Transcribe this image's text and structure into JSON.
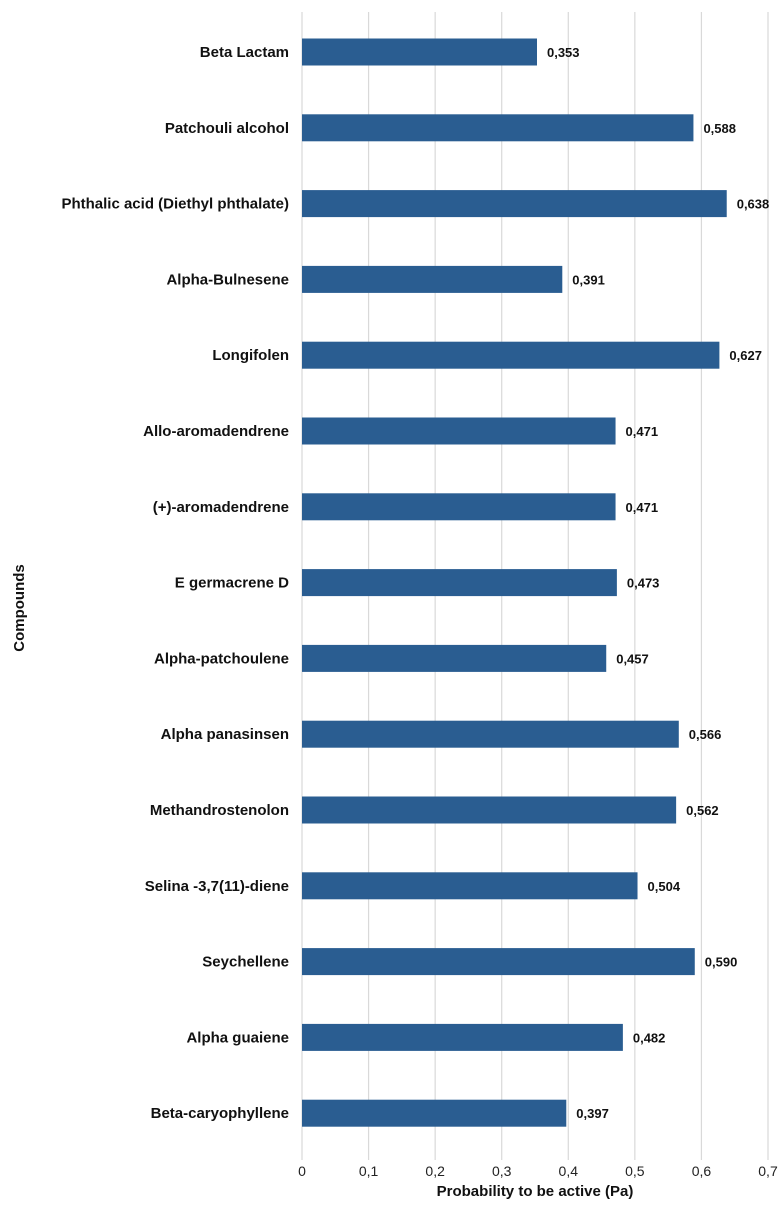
{
  "chart_data": {
    "type": "bar",
    "orientation": "horizontal",
    "categories": [
      "Beta Lactam",
      "Patchouli alcohol",
      "Phthalic acid (Diethyl phthalate)",
      "Alpha-Bulnesene",
      "Longifolen",
      "Allo-aromadendrene",
      "(+)-aromadendrene",
      "E germacrene D",
      "Alpha-patchoulene",
      "Alpha panasinsen",
      "Methandrostenolon",
      "Selina -3,7(11)-diene",
      "Seychellene",
      "Alpha guaiene",
      "Beta-caryophyllene"
    ],
    "values": [
      0.353,
      0.588,
      0.638,
      0.391,
      0.627,
      0.471,
      0.471,
      0.473,
      0.457,
      0.566,
      0.562,
      0.504,
      0.59,
      0.482,
      0.397
    ],
    "value_labels": [
      "0,353",
      "0,588",
      "0,638",
      "0,391",
      "0,627",
      "0,471",
      "0,471",
      "0,473",
      "0,457",
      "0,566",
      "0,562",
      "0,504",
      "0,590",
      "0,482",
      "0,397"
    ],
    "xlabel": "Probability to be active (Pa)",
    "ylabel": "Compounds",
    "xlim": [
      0,
      0.7
    ],
    "x_ticks": [
      0,
      0.1,
      0.2,
      0.3,
      0.4,
      0.5,
      0.6,
      0.7
    ],
    "x_tick_labels": [
      "0",
      "0,1",
      "0,2",
      "0,3",
      "0,4",
      "0,5",
      "0,6",
      "0,7"
    ],
    "grid": "vertical",
    "legend": "none",
    "bar_color": "#2a5d91"
  }
}
